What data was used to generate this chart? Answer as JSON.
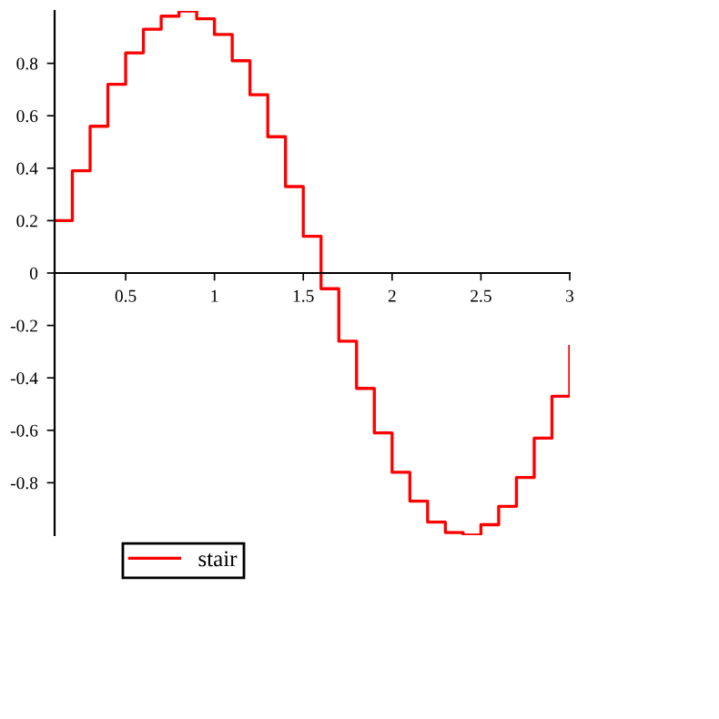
{
  "chart_data": {
    "type": "step",
    "x": [
      0.1,
      0.2,
      0.3,
      0.4,
      0.5,
      0.6,
      0.7,
      0.8,
      0.9,
      1.0,
      1.1,
      1.2,
      1.3,
      1.4,
      1.5,
      1.6,
      1.7,
      1.8,
      1.9,
      2.0,
      2.1,
      2.2,
      2.3,
      2.4,
      2.5,
      2.6,
      2.7,
      2.8,
      2.9,
      3.0
    ],
    "series": [
      {
        "name": "stair",
        "color": "#ff0000",
        "values": [
          0.2,
          0.39,
          0.56,
          0.72,
          0.84,
          0.93,
          0.98,
          1.0,
          0.97,
          0.91,
          0.81,
          0.68,
          0.52,
          0.33,
          0.14,
          -0.06,
          -0.26,
          -0.44,
          -0.61,
          -0.76,
          -0.87,
          -0.95,
          -0.99,
          -1.0,
          -0.96,
          -0.89,
          -0.78,
          -0.63,
          -0.47,
          -0.28
        ]
      }
    ],
    "xlim": [
      0.1,
      3
    ],
    "ylim": [
      -1,
      1
    ],
    "xticks": [
      0.5,
      1,
      1.5,
      2,
      2.5,
      3
    ],
    "yticks": [
      -0.8,
      -0.6,
      -0.4,
      -0.2,
      0,
      0.2,
      0.4,
      0.6,
      0.8
    ],
    "legend": "bottom",
    "grid": false
  }
}
